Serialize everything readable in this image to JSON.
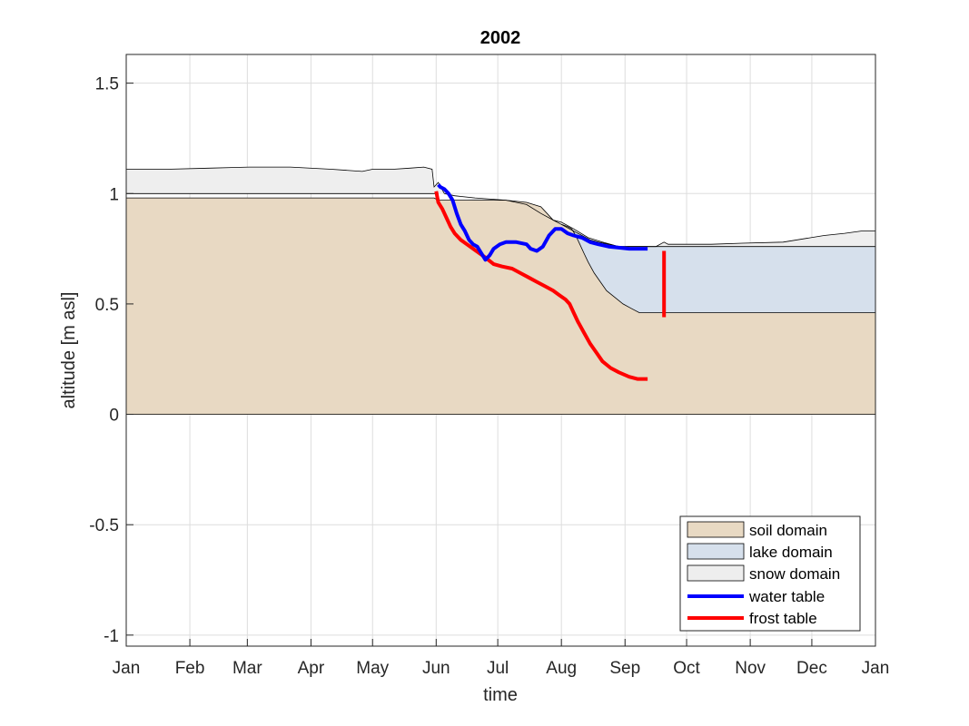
{
  "chart_data": {
    "type": "area",
    "title": "2002",
    "xlabel": "time",
    "ylabel": "altitude [m asl]",
    "x_unit": "day of year",
    "xlim": [
      0,
      365
    ],
    "ylim": [
      -1.05,
      1.63
    ],
    "x_ticks": [
      {
        "label": "Jan",
        "day": 0
      },
      {
        "label": "Feb",
        "day": 31
      },
      {
        "label": "Mar",
        "day": 59
      },
      {
        "label": "Apr",
        "day": 90
      },
      {
        "label": "May",
        "day": 120
      },
      {
        "label": "Jun",
        "day": 151
      },
      {
        "label": "Jul",
        "day": 181
      },
      {
        "label": "Aug",
        "day": 212
      },
      {
        "label": "Sep",
        "day": 243
      },
      {
        "label": "Oct",
        "day": 273
      },
      {
        "label": "Nov",
        "day": 304
      },
      {
        "label": "Dec",
        "day": 334
      },
      {
        "label": "Jan",
        "day": 365
      }
    ],
    "y_ticks": [
      {
        "label": "-1",
        "value": -1
      },
      {
        "label": "-0.5",
        "value": -0.5
      },
      {
        "label": "0",
        "value": 0
      },
      {
        "label": "0.5",
        "value": 0.5
      },
      {
        "label": "1",
        "value": 1
      },
      {
        "label": "1.5",
        "value": 1.5
      }
    ],
    "grid": true,
    "legend_position": "bottom-right",
    "colors": {
      "soil": "#e8d9c3",
      "lake": "#d6e0ec",
      "snow": "#eeeeee",
      "water_table": "#0000ff",
      "frost_table": "#ff0000",
      "outline": "#000000"
    },
    "soil_domain": {
      "name": "soil domain",
      "points": [
        [
          0,
          0.98
        ],
        [
          150,
          0.98
        ],
        [
          152,
          0.97
        ],
        [
          170,
          0.97
        ],
        [
          185,
          0.97
        ],
        [
          195,
          0.96
        ],
        [
          202,
          0.94
        ],
        [
          205,
          0.91
        ],
        [
          208,
          0.88
        ],
        [
          212,
          0.86
        ],
        [
          215,
          0.85
        ],
        [
          217,
          0.84
        ],
        [
          219,
          0.81
        ],
        [
          221,
          0.77
        ],
        [
          223,
          0.73
        ],
        [
          225,
          0.69
        ],
        [
          228,
          0.64
        ],
        [
          231,
          0.6
        ],
        [
          234,
          0.56
        ],
        [
          238,
          0.53
        ],
        [
          242,
          0.5
        ],
        [
          246,
          0.48
        ],
        [
          250,
          0.46
        ],
        [
          255,
          0.46
        ],
        [
          365,
          0.46
        ]
      ]
    },
    "lake_domain": {
      "name": "lake domain",
      "upper": [
        [
          212,
          0.86
        ],
        [
          214,
          0.85
        ],
        [
          218,
          0.83
        ],
        [
          222,
          0.81
        ],
        [
          226,
          0.79
        ],
        [
          230,
          0.78
        ],
        [
          235,
          0.77
        ],
        [
          240,
          0.76
        ],
        [
          250,
          0.76
        ],
        [
          365,
          0.76
        ]
      ]
    },
    "snow_domain": {
      "name": "snow domain",
      "points": [
        [
          0,
          1.11
        ],
        [
          20,
          1.11
        ],
        [
          40,
          1.115
        ],
        [
          60,
          1.12
        ],
        [
          80,
          1.12
        ],
        [
          100,
          1.11
        ],
        [
          115,
          1.1
        ],
        [
          120,
          1.11
        ],
        [
          130,
          1.11
        ],
        [
          138,
          1.115
        ],
        [
          145,
          1.12
        ],
        [
          149,
          1.11
        ],
        [
          150,
          1.03
        ],
        [
          152,
          1.05
        ],
        [
          155,
          1.0
        ],
        [
          160,
          0.99
        ],
        [
          170,
          0.98
        ],
        [
          185,
          0.97
        ],
        [
          195,
          0.95
        ],
        [
          202,
          0.91
        ],
        [
          208,
          0.88
        ],
        [
          212,
          0.87
        ],
        [
          218,
          0.84
        ],
        [
          225,
          0.8
        ],
        [
          232,
          0.78
        ],
        [
          240,
          0.76
        ],
        [
          258,
          0.76
        ],
        [
          262,
          0.78
        ],
        [
          264,
          0.77
        ],
        [
          272,
          0.77
        ],
        [
          285,
          0.77
        ],
        [
          300,
          0.775
        ],
        [
          320,
          0.78
        ],
        [
          340,
          0.81
        ],
        [
          350,
          0.82
        ],
        [
          358,
          0.83
        ],
        [
          365,
          0.83
        ]
      ]
    },
    "snow_base_early": {
      "points": [
        [
          0,
          1.0
        ],
        [
          152,
          1.0
        ]
      ]
    },
    "water_table": {
      "name": "water table",
      "points": [
        [
          152,
          1.04
        ],
        [
          153,
          1.03
        ],
        [
          155,
          1.02
        ],
        [
          157,
          1.0
        ],
        [
          159,
          0.97
        ],
        [
          161,
          0.91
        ],
        [
          163,
          0.86
        ],
        [
          165,
          0.83
        ],
        [
          167,
          0.79
        ],
        [
          169,
          0.77
        ],
        [
          171,
          0.76
        ],
        [
          173,
          0.73
        ],
        [
          175,
          0.7
        ],
        [
          177,
          0.72
        ],
        [
          179,
          0.75
        ],
        [
          182,
          0.77
        ],
        [
          185,
          0.78
        ],
        [
          190,
          0.78
        ],
        [
          195,
          0.77
        ],
        [
          197,
          0.75
        ],
        [
          200,
          0.74
        ],
        [
          203,
          0.76
        ],
        [
          206,
          0.81
        ],
        [
          209,
          0.84
        ],
        [
          212,
          0.84
        ],
        [
          215,
          0.82
        ],
        [
          218,
          0.81
        ],
        [
          222,
          0.8
        ],
        [
          226,
          0.78
        ],
        [
          230,
          0.77
        ],
        [
          235,
          0.76
        ],
        [
          240,
          0.755
        ],
        [
          245,
          0.75
        ],
        [
          250,
          0.75
        ],
        [
          254,
          0.75
        ]
      ]
    },
    "frost_table": {
      "name": "frost table",
      "points": [
        [
          151,
          1.01
        ],
        [
          152,
          0.96
        ],
        [
          154,
          0.93
        ],
        [
          156,
          0.89
        ],
        [
          158,
          0.85
        ],
        [
          160,
          0.82
        ],
        [
          163,
          0.79
        ],
        [
          166,
          0.77
        ],
        [
          169,
          0.75
        ],
        [
          172,
          0.73
        ],
        [
          175,
          0.71
        ],
        [
          179,
          0.68
        ],
        [
          183,
          0.67
        ],
        [
          188,
          0.66
        ],
        [
          192,
          0.64
        ],
        [
          196,
          0.62
        ],
        [
          200,
          0.6
        ],
        [
          204,
          0.58
        ],
        [
          208,
          0.56
        ],
        [
          211,
          0.54
        ],
        [
          214,
          0.52
        ],
        [
          216,
          0.5
        ],
        [
          218,
          0.46
        ],
        [
          220,
          0.42
        ],
        [
          223,
          0.37
        ],
        [
          226,
          0.32
        ],
        [
          229,
          0.28
        ],
        [
          232,
          0.24
        ],
        [
          236,
          0.21
        ],
        [
          240,
          0.19
        ],
        [
          245,
          0.17
        ],
        [
          249,
          0.16
        ],
        [
          254,
          0.16
        ]
      ],
      "freeze_segment": [
        [
          262,
          0.74
        ],
        [
          262,
          0.44
        ]
      ]
    },
    "legend": [
      "soil domain",
      "lake domain",
      "snow domain",
      "water table",
      "frost table"
    ]
  }
}
